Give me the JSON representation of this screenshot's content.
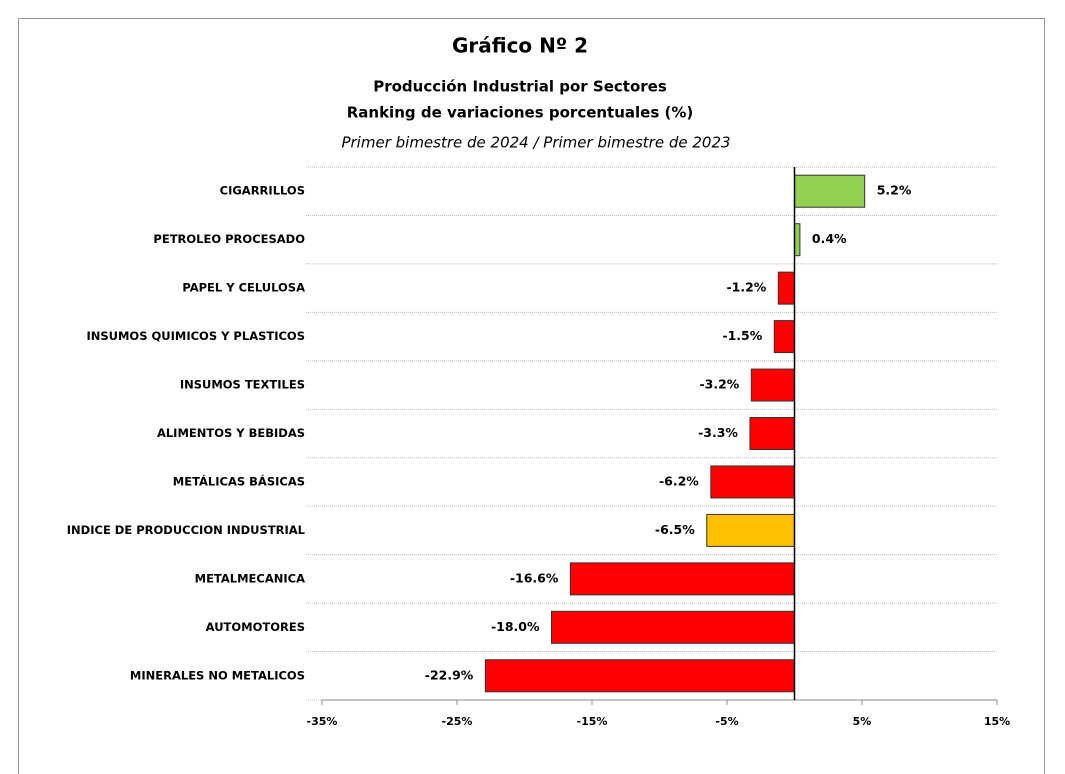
{
  "chart_data": {
    "type": "barh",
    "title": "Gráfico Nº 2",
    "subtitle": "Producción Industrial por Sectores",
    "subtitle2": "Ranking de variaciones porcentuales (%)",
    "period": "Primer bimestre de 2024 / Primer bimestre de 2023",
    "categories": [
      "CIGARRILLOS",
      "PETROLEO PROCESADO",
      "PAPEL Y CELULOSA",
      "INSUMOS QUIMICOS Y PLASTICOS",
      "INSUMOS TEXTILES",
      "ALIMENTOS Y BEBIDAS",
      "METÁLICAS BÁSICAS",
      "INDICE DE PRODUCCION INDUSTRIAL",
      "METALMECANICA",
      "AUTOMOTORES",
      "MINERALES NO METALICOS"
    ],
    "values": [
      5.2,
      0.4,
      -1.2,
      -1.5,
      -3.2,
      -3.3,
      -6.2,
      -6.5,
      -16.6,
      -18.0,
      -22.9
    ],
    "value_labels": [
      "5.2%",
      "0.4%",
      "-1.2%",
      "-1.5%",
      "-3.2%",
      "-3.3%",
      "-6.2%",
      "-6.5%",
      "-16.6%",
      "-18.0%",
      "-22.9%"
    ],
    "colors": [
      "#92d050",
      "#92d050",
      "#ff0000",
      "#ff0000",
      "#ff0000",
      "#ff0000",
      "#ff0000",
      "#ffc000",
      "#ff0000",
      "#ff0000",
      "#ff0000"
    ],
    "xlim": [
      -35,
      15
    ],
    "xticks": [
      {
        "value": -35,
        "label": "-35%"
      },
      {
        "value": -25,
        "label": "-25%"
      },
      {
        "value": -15,
        "label": "-15%"
      },
      {
        "value": -5,
        "label": "-5%"
      },
      {
        "value": 5,
        "label": "5%"
      },
      {
        "value": 15,
        "label": "15%"
      }
    ]
  }
}
